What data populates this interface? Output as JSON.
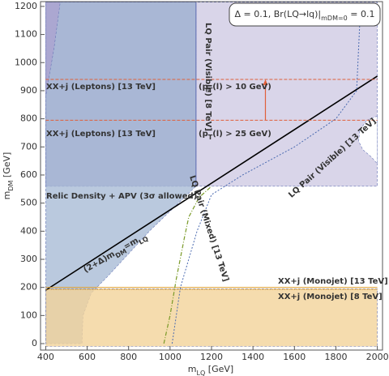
{
  "chart_data": {
    "type": "region",
    "x_label": [
      "m",
      "LQ",
      " [GeV]"
    ],
    "y_label": [
      "m",
      "DM",
      " [GeV]"
    ],
    "xlim": [
      375,
      2025
    ],
    "ylim": [
      -23,
      1217
    ],
    "xticks": [
      400,
      600,
      800,
      1000,
      1200,
      1400,
      1600,
      1800,
      2000
    ],
    "yticks": [
      0,
      100,
      200,
      300,
      400,
      500,
      600,
      700,
      800,
      900,
      1000,
      1100,
      1200
    ],
    "regions": [
      {
        "color": "#cfcae4",
        "x": [
          400,
          2000,
          2000,
          400
        ],
        "y": [
          560,
          560,
          1215,
          1215
        ]
      },
      {
        "color": "#9f9bcb",
        "x": [
          400,
          1125,
          1125,
          400
        ],
        "y": [
          560,
          560,
          1215,
          1215
        ]
      },
      {
        "color": "#a9bbd6",
        "x": [
          400,
          575,
          580,
          620,
          700,
          900,
          1125,
          1125,
          470,
          440,
          400
        ],
        "y": [
          0,
          0,
          100,
          180,
          240,
          400,
          560,
          1215,
          1215,
          1050,
          880
        ]
      },
      {
        "color": "#f2d39a",
        "x": [
          400,
          2000,
          2000,
          400
        ],
        "y": [
          -10,
          -10,
          195,
          195
        ]
      },
      {
        "color": "#ffffff",
        "x": [
          2000,
          1950,
          1915,
          1910,
          1930,
          1970,
          2000
        ],
        "y": [
          810,
          795,
          760,
          720,
          690,
          665,
          640
        ]
      }
    ],
    "lines": [
      {
        "color": "#000000",
        "dash": "",
        "width": 1.6,
        "x": [
          400,
          2000
        ],
        "y": [
          190,
          952
        ]
      },
      {
        "color": "#e0603a",
        "dash": "4 2",
        "width": 1,
        "x": [
          400,
          2000
        ],
        "y": [
          940,
          940
        ]
      },
      {
        "color": "#e0603a",
        "dash": "4 2",
        "width": 1,
        "x": [
          400,
          2000
        ],
        "y": [
          795,
          795
        ]
      },
      {
        "color": "#e0a030",
        "dash": "",
        "width": 1,
        "x": [
          400,
          2000
        ],
        "y": [
          200,
          200
        ]
      },
      {
        "color": "#e0a030",
        "dash": "2 1",
        "width": 1,
        "x": [
          400,
          2000
        ],
        "y": [
          193,
          193
        ]
      },
      {
        "color": "#6a78b8",
        "dash": "",
        "width": 1.2,
        "x": [
          1125,
          1125
        ],
        "y": [
          560,
          1215
        ]
      },
      {
        "color": "#7a9a28",
        "dash": "5 2 1 2",
        "width": 1.2,
        "x": [
          970,
          1000,
          1030,
          1070,
          1090,
          1140,
          1200
        ],
        "y": [
          0,
          100,
          230,
          380,
          450,
          520,
          560
        ]
      },
      {
        "color": "#4a6ab0",
        "dash": "2 2",
        "width": 1,
        "x": [
          1010,
          1050,
          1130,
          1200,
          1350,
          1600,
          1800,
          1900,
          1920
        ],
        "y": [
          0,
          200,
          400,
          530,
          600,
          700,
          800,
          900,
          1215
        ]
      }
    ],
    "arrow": {
      "color": "#e0603a",
      "x": 1460,
      "y": [
        795,
        940
      ]
    },
    "annotations": [
      {
        "color": "#000000",
        "text": [
          "Δ = 0.1, Br(LQ→lq)|",
          "mDM=0",
          " = 0.1"
        ]
      },
      {
        "color": "#e0603a",
        "text": [
          "XX+j (Leptons) [13 TeV]"
        ]
      },
      {
        "color": "#e0603a",
        "text": [
          "XX+j (Leptons) [13 TeV]"
        ]
      },
      {
        "color": "#e0603a",
        "text": [
          "(p",
          "T",
          "(l) > 10 GeV)"
        ]
      },
      {
        "color": "#e0603a",
        "text": [
          "(p",
          "T",
          "(l) > 25 GeV)"
        ]
      },
      {
        "color": "#6a78b8",
        "text": [
          "LQ Pair (Visible) [8 TeV]"
        ]
      },
      {
        "color": "#4a6ab0",
        "text": [
          "LQ Pair (Visible) [13 TeV]"
        ]
      },
      {
        "color": "#6b64a8",
        "text": [
          "Relic Density + APV (3σ allowed)"
        ]
      },
      {
        "color": "#000000",
        "text": [
          "(2+Δ)m",
          "DM",
          "=m",
          "LQ"
        ]
      },
      {
        "color": "#7a9a28",
        "text": [
          "LQ Pair (Mixed) [13 TeV]"
        ]
      },
      {
        "color": "#c8901c",
        "text": [
          "XX+j (Monojet) [13 TeV]"
        ]
      },
      {
        "color": "#c8901c",
        "text": [
          "XX+j (Monojet) [8 TeV]"
        ]
      }
    ]
  }
}
